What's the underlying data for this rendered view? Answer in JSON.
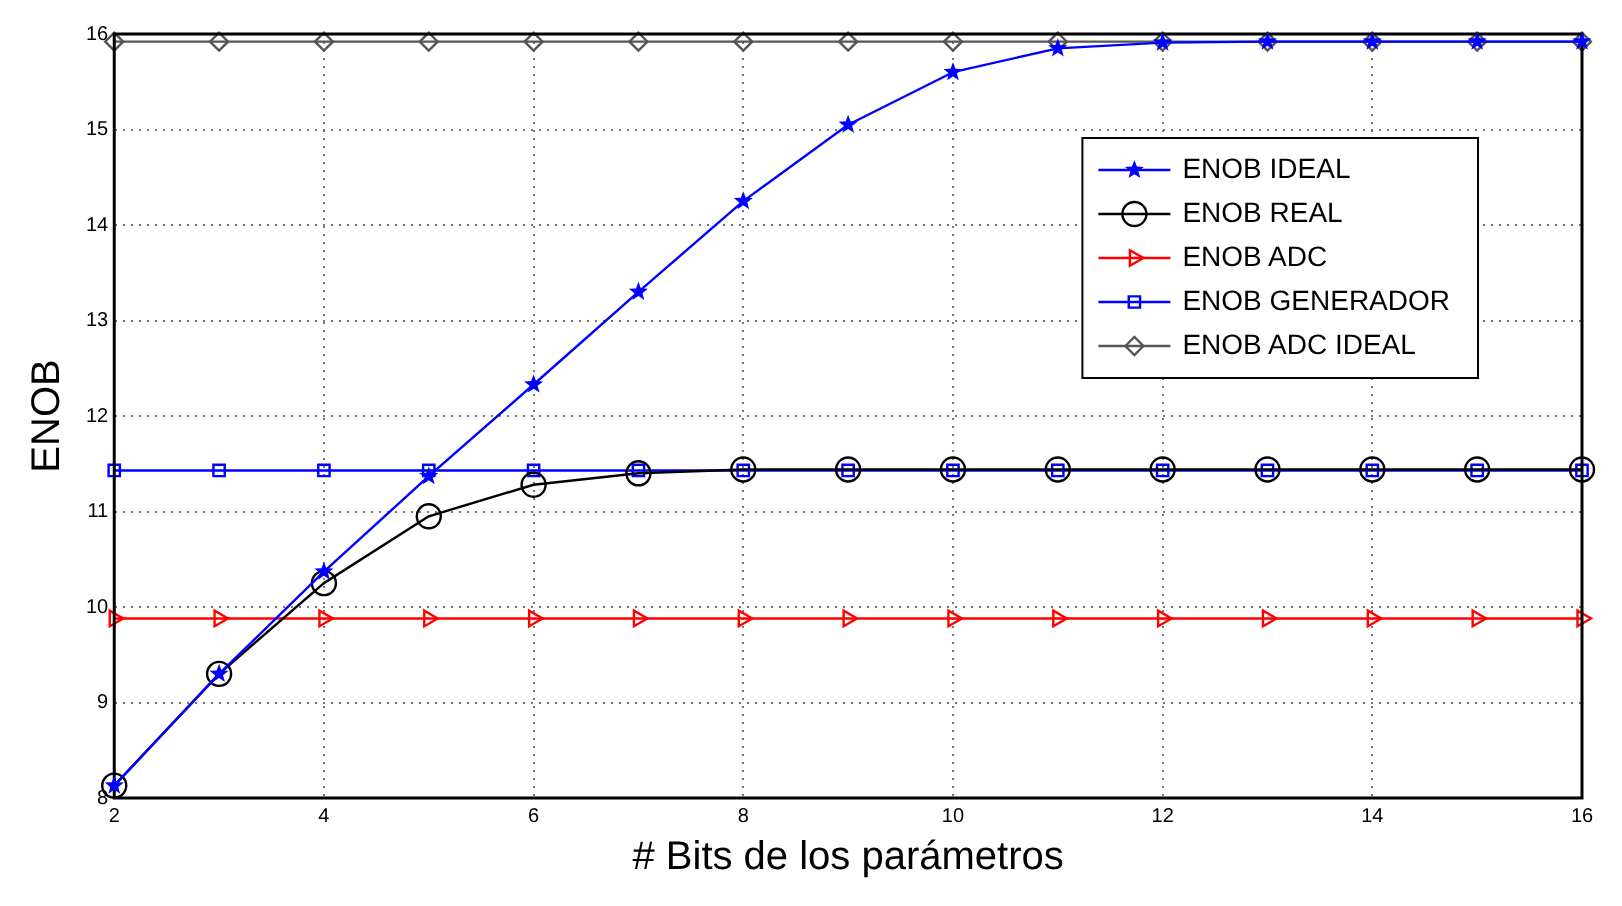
{
  "chart_data": {
    "type": "line",
    "xlabel": "# Bits de los parámetros",
    "ylabel": "ENOB",
    "x": [
      2,
      3,
      4,
      5,
      6,
      7,
      8,
      9,
      10,
      11,
      12,
      13,
      14,
      15,
      16
    ],
    "series": [
      {
        "name": "ENOB IDEAL",
        "color": "#0000ff",
        "marker": "star",
        "values": [
          8.13,
          9.3,
          10.37,
          11.37,
          12.33,
          13.3,
          14.25,
          15.05,
          15.6,
          15.85,
          15.91,
          15.92,
          15.92,
          15.92,
          15.92
        ]
      },
      {
        "name": "ENOB REAL",
        "color": "#000000",
        "marker": "circle",
        "values": [
          8.13,
          9.3,
          10.25,
          10.95,
          11.28,
          11.4,
          11.44,
          11.44,
          11.44,
          11.44,
          11.44,
          11.44,
          11.44,
          11.44,
          11.44
        ]
      },
      {
        "name": "ENOB ADC",
        "color": "#ff0000",
        "marker": "triangle",
        "values": [
          9.88,
          9.88,
          9.88,
          9.88,
          9.88,
          9.88,
          9.88,
          9.88,
          9.88,
          9.88,
          9.88,
          9.88,
          9.88,
          9.88,
          9.88
        ]
      },
      {
        "name": "ENOB GENERADOR",
        "color": "#0000ff",
        "marker": "square",
        "values": [
          11.43,
          11.43,
          11.43,
          11.43,
          11.43,
          11.43,
          11.43,
          11.43,
          11.43,
          11.43,
          11.43,
          11.43,
          11.43,
          11.43,
          11.43
        ]
      },
      {
        "name": "ENOB ADC IDEAL",
        "color": "#555555",
        "marker": "diamond",
        "values": [
          15.92,
          15.92,
          15.92,
          15.92,
          15.92,
          15.92,
          15.92,
          15.92,
          15.92,
          15.92,
          15.92,
          15.92,
          15.92,
          15.92,
          15.92
        ]
      }
    ],
    "xlim": [
      2,
      16
    ],
    "xticks": [
      2,
      4,
      6,
      8,
      10,
      12,
      14,
      16
    ],
    "ylim": [
      8,
      16
    ],
    "yticks": [
      8,
      9,
      10,
      11,
      12,
      13,
      14,
      15,
      16
    ],
    "grid": true,
    "legend": "top right",
    "line_style": "solid"
  }
}
